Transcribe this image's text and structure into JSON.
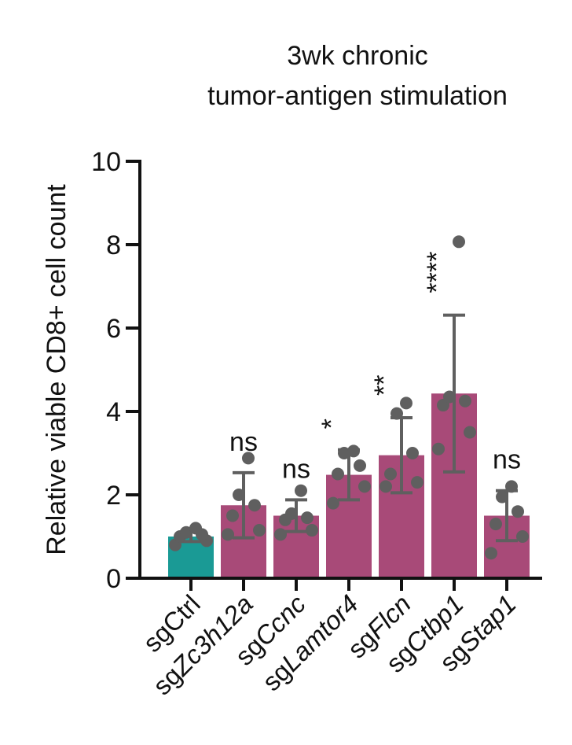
{
  "chart_data": {
    "type": "bar",
    "title_lines": [
      "3wk chronic",
      "tumor-antigen stimulation"
    ],
    "ylabel": "Relative viable CD8+ cell count",
    "xlabel": "",
    "ylim": [
      0,
      10
    ],
    "yticks": [
      0,
      2,
      4,
      6,
      8,
      10
    ],
    "categories": [
      {
        "prefix": "sg",
        "gene": "Ctrl",
        "italic": false
      },
      {
        "prefix": "sg",
        "gene": "Zc3h12a",
        "italic": true
      },
      {
        "prefix": "sg",
        "gene": "Ccnc",
        "italic": true
      },
      {
        "prefix": "sg",
        "gene": "Lamtor4",
        "italic": true
      },
      {
        "prefix": "sg",
        "gene": "Flcn",
        "italic": true
      },
      {
        "prefix": "sg",
        "gene": "Ctbp1",
        "italic": true
      },
      {
        "prefix": "sg",
        "gene": "Stap1",
        "italic": true
      }
    ],
    "means": [
      1.0,
      1.75,
      1.5,
      2.48,
      2.95,
      4.43,
      1.5
    ],
    "sd": [
      0.12,
      0.78,
      0.38,
      0.6,
      0.9,
      1.88,
      0.6
    ],
    "points": [
      [
        0.8,
        0.9,
        1.0,
        1.05,
        1.1,
        1.2
      ],
      [
        1.05,
        1.15,
        1.5,
        1.75,
        2.0,
        2.88
      ],
      [
        1.05,
        1.15,
        1.4,
        1.45,
        1.55,
        2.1
      ],
      [
        1.8,
        2.2,
        2.5,
        2.7,
        3.0,
        3.05
      ],
      [
        2.2,
        2.3,
        2.5,
        3.0,
        3.95,
        4.2
      ],
      [
        3.1,
        3.5,
        4.15,
        4.25,
        4.35,
        8.07
      ],
      [
        0.6,
        1.0,
        1.3,
        1.6,
        1.95,
        2.2
      ]
    ],
    "significance": [
      "",
      "ns",
      "ns",
      "*",
      "**",
      "****",
      "ns"
    ],
    "colors": {
      "control": "#1a9a95",
      "treatment": "#a84a78",
      "points": "#5f5f5f",
      "axis": "#111111"
    },
    "grid": false
  }
}
